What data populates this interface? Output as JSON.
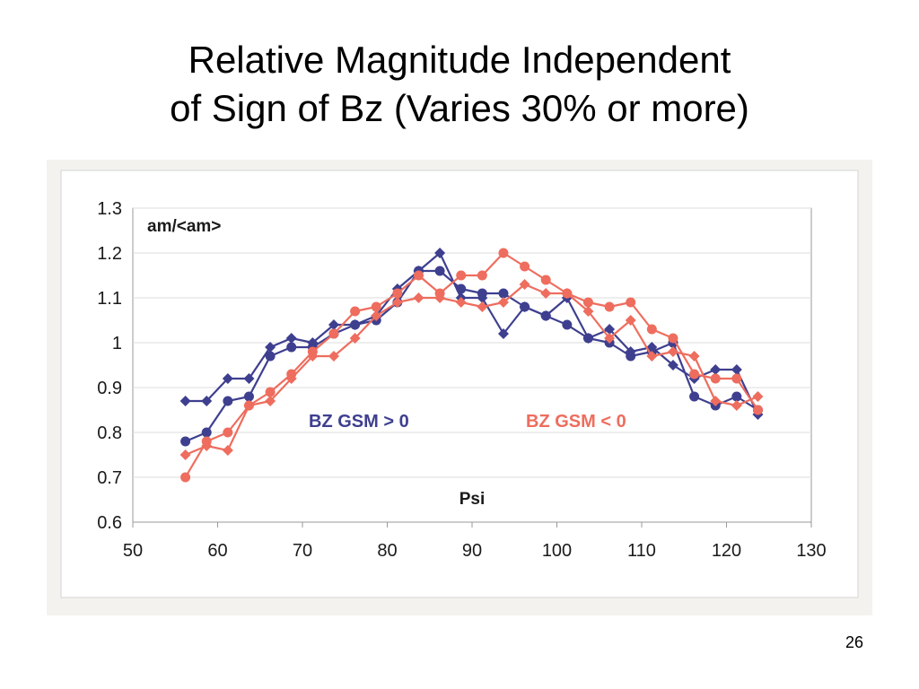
{
  "slide": {
    "title_line1": "Relative Magnitude Independent",
    "title_line2": "of Sign of Bz (Varies 30% or more)",
    "page_number": "26"
  },
  "chart_data": {
    "type": "line",
    "title": "",
    "ylabel": "am/<am>",
    "xlabel": "Psi",
    "xlim": [
      50,
      130
    ],
    "ylim": [
      0.6,
      1.3
    ],
    "x_ticks": [
      "50",
      "60",
      "70",
      "80",
      "90",
      "100",
      "110",
      "120",
      "130"
    ],
    "y_ticks": [
      "0.6",
      "0.7",
      "0.8",
      "0.9",
      "1",
      "1.1",
      "1.2",
      "1.3"
    ],
    "annotations": [
      {
        "text": "BZ GSM > 0",
        "color": "#3e3f8f"
      },
      {
        "text": "BZ GSM < 0",
        "color": "#ee6d5e"
      }
    ],
    "series": [
      {
        "color": "#3e3f8f",
        "marker": "circle",
        "x": [
          56.2,
          58.7,
          61.2,
          63.7,
          66.2,
          68.7,
          71.2,
          73.7,
          76.2,
          78.7,
          81.2,
          83.7,
          86.2,
          88.7,
          91.2,
          93.7,
          96.2,
          98.7,
          101.2,
          103.7,
          106.2,
          108.7,
          111.2,
          113.7,
          116.2,
          118.7,
          121.2,
          123.7
        ],
        "y": [
          0.78,
          0.8,
          0.87,
          0.88,
          0.97,
          0.99,
          0.99,
          1.02,
          1.04,
          1.05,
          1.09,
          1.16,
          1.16,
          1.12,
          1.11,
          1.11,
          1.08,
          1.06,
          1.04,
          1.01,
          1.0,
          0.97,
          0.98,
          1.0,
          0.88,
          0.86,
          0.88,
          0.85
        ]
      },
      {
        "color": "#3e3f8f",
        "marker": "diamond",
        "x": [
          56.2,
          58.7,
          61.2,
          63.7,
          66.2,
          68.7,
          71.2,
          73.7,
          76.2,
          78.7,
          81.2,
          83.7,
          86.2,
          88.7,
          91.2,
          93.7,
          96.2,
          98.7,
          101.2,
          103.7,
          106.2,
          108.7,
          111.2,
          113.7,
          116.2,
          118.7,
          121.2,
          123.7
        ],
        "y": [
          0.87,
          0.87,
          0.92,
          0.92,
          0.99,
          1.01,
          1.0,
          1.04,
          1.04,
          1.06,
          1.12,
          1.16,
          1.2,
          1.1,
          1.1,
          1.02,
          1.08,
          1.06,
          1.1,
          1.01,
          1.03,
          0.98,
          0.99,
          0.95,
          0.92,
          0.94,
          0.94,
          0.84
        ]
      },
      {
        "color": "#ee6d5e",
        "marker": "circle",
        "x": [
          56.2,
          58.7,
          61.2,
          63.7,
          66.2,
          68.7,
          71.2,
          73.7,
          76.2,
          78.7,
          81.2,
          83.7,
          86.2,
          88.7,
          91.2,
          93.7,
          96.2,
          98.7,
          101.2,
          103.7,
          106.2,
          108.7,
          111.2,
          113.7,
          116.2,
          118.7,
          121.2,
          123.7
        ],
        "y": [
          0.7,
          0.78,
          0.8,
          0.86,
          0.89,
          0.93,
          0.98,
          1.02,
          1.07,
          1.08,
          1.11,
          1.15,
          1.11,
          1.15,
          1.15,
          1.2,
          1.17,
          1.14,
          1.11,
          1.09,
          1.08,
          1.09,
          1.03,
          1.01,
          0.93,
          0.92,
          0.92,
          0.85
        ]
      },
      {
        "color": "#ee6d5e",
        "marker": "diamond",
        "x": [
          56.2,
          58.7,
          61.2,
          63.7,
          66.2,
          68.7,
          71.2,
          73.7,
          76.2,
          78.7,
          81.2,
          83.7,
          86.2,
          88.7,
          91.2,
          93.7,
          96.2,
          98.7,
          101.2,
          103.7,
          106.2,
          108.7,
          111.2,
          113.7,
          116.2,
          118.7,
          121.2,
          123.7
        ],
        "y": [
          0.75,
          0.77,
          0.76,
          0.86,
          0.87,
          0.92,
          0.97,
          0.97,
          1.01,
          1.06,
          1.09,
          1.1,
          1.1,
          1.09,
          1.08,
          1.09,
          1.13,
          1.11,
          1.11,
          1.07,
          1.01,
          1.05,
          0.97,
          0.98,
          0.97,
          0.87,
          0.86,
          0.88
        ]
      }
    ]
  }
}
